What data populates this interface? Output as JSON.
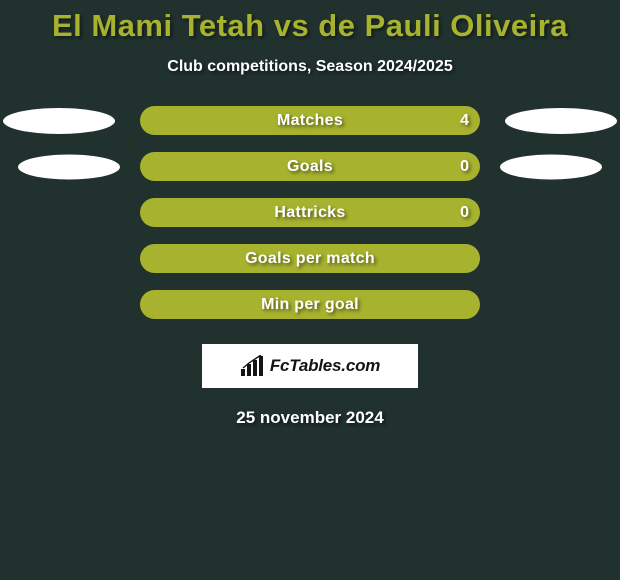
{
  "background_color": "#21312e",
  "title": {
    "text": "El Mami Tetah vs de Pauli Oliveira",
    "color": "#a7b22e"
  },
  "subtitle": "Club competitions, Season 2024/2025",
  "bar_color": "#a7b22e",
  "ellipse_color": "#ffffff",
  "rows": [
    {
      "label": "Matches",
      "value": "4",
      "show_value": true,
      "ellipses": "large"
    },
    {
      "label": "Goals",
      "value": "0",
      "show_value": true,
      "ellipses": "small"
    },
    {
      "label": "Hattricks",
      "value": "0",
      "show_value": true,
      "ellipses": "none"
    },
    {
      "label": "Goals per match",
      "value": "",
      "show_value": false,
      "ellipses": "none"
    },
    {
      "label": "Min per goal",
      "value": "",
      "show_value": false,
      "ellipses": "none"
    }
  ],
  "brand": "FcTables.com",
  "date": "25 november 2024",
  "ellipse_border_radius": "50%"
}
